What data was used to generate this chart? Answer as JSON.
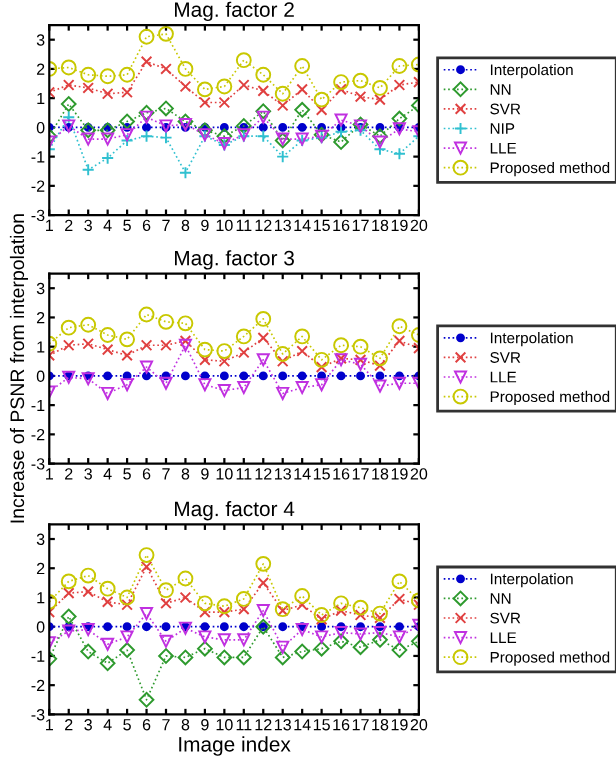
{
  "chart_data": [
    {
      "type": "line",
      "title": "Mag. factor 2",
      "x": [
        1,
        2,
        3,
        4,
        5,
        6,
        7,
        8,
        9,
        10,
        11,
        12,
        13,
        14,
        15,
        16,
        17,
        18,
        19,
        20
      ],
      "xlim": [
        1,
        20
      ],
      "xticks": [
        1,
        2,
        3,
        4,
        5,
        6,
        7,
        8,
        9,
        10,
        11,
        12,
        13,
        14,
        15,
        16,
        17,
        18,
        19,
        20
      ],
      "ylim": [
        -3,
        3.5
      ],
      "yticks": [
        -3,
        -2,
        -1,
        0,
        1,
        2,
        3
      ],
      "line_style": "dotted",
      "legend": "right",
      "grid": false,
      "series": [
        {
          "name": "Interpolation",
          "color": "#0000cc",
          "marker": "circle",
          "values": [
            0,
            0,
            0,
            0,
            0,
            0,
            0,
            0,
            0,
            0,
            0,
            0,
            0,
            0,
            0,
            0,
            0,
            0,
            0,
            0
          ]
        },
        {
          "name": "NN",
          "color": "#2e9a2e",
          "marker": "diamond",
          "values": [
            -0.3,
            0.8,
            -0.1,
            -0.1,
            0.2,
            0.5,
            0.65,
            0.2,
            -0.1,
            -0.3,
            0.05,
            0.55,
            -0.45,
            0.6,
            -0.25,
            -0.5,
            0.1,
            -0.3,
            0.3,
            0.75
          ]
        },
        {
          "name": "SVR",
          "color": "#e04040",
          "marker": "cross",
          "values": [
            1.2,
            1.45,
            1.35,
            1.15,
            1.2,
            2.25,
            2.0,
            1.4,
            0.85,
            0.85,
            1.45,
            1.25,
            0.75,
            1.3,
            0.6,
            1.3,
            1.05,
            0.95,
            1.45,
            1.55
          ]
        },
        {
          "name": "NIP",
          "color": "#30c0d0",
          "marker": "plus",
          "values": [
            -0.75,
            0.35,
            -1.45,
            -1.05,
            -0.45,
            -0.3,
            -0.35,
            -1.55,
            -0.3,
            -0.6,
            -0.3,
            -0.3,
            -1.0,
            -0.45,
            -0.35,
            -0.15,
            -0.1,
            -0.75,
            -0.9,
            -0.3
          ]
        },
        {
          "name": "LLE",
          "color": "#c030e0",
          "marker": "triangle",
          "values": [
            -0.5,
            0.05,
            -0.4,
            -0.4,
            -0.25,
            0.35,
            0.05,
            0.1,
            -0.25,
            -0.55,
            -0.25,
            0.35,
            -0.4,
            -0.4,
            -0.3,
            0.25,
            0.05,
            -0.5,
            -0.05,
            -0.15
          ]
        },
        {
          "name": "Proposed method",
          "color": "#c8c800",
          "marker": "circle_open",
          "values": [
            2.0,
            2.05,
            1.8,
            1.75,
            1.8,
            3.1,
            3.2,
            2.0,
            1.3,
            1.4,
            2.3,
            1.8,
            1.15,
            2.1,
            0.95,
            1.55,
            1.6,
            1.35,
            2.1,
            2.15
          ]
        }
      ]
    },
    {
      "type": "line",
      "title": "Mag. factor 3",
      "ylabel": "Increase of PSNR from interpolation",
      "x": [
        1,
        2,
        3,
        4,
        5,
        6,
        7,
        8,
        9,
        10,
        11,
        12,
        13,
        14,
        15,
        16,
        17,
        18,
        19,
        20
      ],
      "xlim": [
        1,
        20
      ],
      "xticks": [
        1,
        2,
        3,
        4,
        5,
        6,
        7,
        8,
        9,
        10,
        11,
        12,
        13,
        14,
        15,
        16,
        17,
        18,
        19,
        20
      ],
      "ylim": [
        -3,
        3.5
      ],
      "yticks": [
        -3,
        -2,
        -1,
        0,
        1,
        2,
        3
      ],
      "line_style": "dotted",
      "legend": "right",
      "grid": false,
      "series": [
        {
          "name": "Interpolation",
          "color": "#0000cc",
          "marker": "circle",
          "values": [
            0,
            0,
            0,
            0,
            0,
            0,
            0,
            0,
            0,
            0,
            0,
            0,
            0,
            0,
            0,
            0,
            0,
            0,
            0,
            0
          ]
        },
        {
          "name": "SVR",
          "color": "#e04040",
          "marker": "cross",
          "values": [
            0.7,
            1.05,
            1.1,
            0.9,
            0.7,
            1.05,
            1.05,
            1.2,
            0.55,
            0.5,
            0.8,
            1.3,
            0.5,
            0.85,
            0.3,
            0.6,
            0.55,
            0.35,
            1.2,
            0.95
          ]
        },
        {
          "name": "LLE",
          "color": "#c030e0",
          "marker": "triangle",
          "values": [
            -0.55,
            -0.05,
            -0.1,
            -0.6,
            -0.3,
            0.3,
            -0.25,
            1.05,
            -0.3,
            -0.5,
            -0.4,
            0.55,
            -0.6,
            -0.4,
            -0.3,
            0.55,
            0.4,
            -0.35,
            -0.25,
            -0.25
          ]
        },
        {
          "name": "Proposed method",
          "color": "#c8c800",
          "marker": "circle_open",
          "values": [
            1.1,
            1.65,
            1.75,
            1.4,
            1.25,
            2.1,
            1.85,
            1.8,
            0.9,
            0.85,
            1.35,
            1.95,
            0.75,
            1.35,
            0.55,
            1.05,
            1.0,
            0.6,
            1.7,
            1.4
          ]
        }
      ]
    },
    {
      "type": "line",
      "title": "Mag. factor 4",
      "xlabel": "Image index",
      "x": [
        1,
        2,
        3,
        4,
        5,
        6,
        7,
        8,
        9,
        10,
        11,
        12,
        13,
        14,
        15,
        16,
        17,
        18,
        19,
        20
      ],
      "xlim": [
        1,
        20
      ],
      "xticks": [
        1,
        2,
        3,
        4,
        5,
        6,
        7,
        8,
        9,
        10,
        11,
        12,
        13,
        14,
        15,
        16,
        17,
        18,
        19,
        20
      ],
      "ylim": [
        -3,
        3.5
      ],
      "yticks": [
        -3,
        -2,
        -1,
        0,
        1,
        2,
        3
      ],
      "line_style": "dotted",
      "legend": "right",
      "grid": false,
      "series": [
        {
          "name": "Interpolation",
          "color": "#0000cc",
          "marker": "circle",
          "values": [
            0,
            0,
            0,
            0,
            0,
            0,
            0,
            0,
            0,
            0,
            0,
            0,
            0,
            0,
            0,
            0,
            0,
            0,
            0,
            0
          ]
        },
        {
          "name": "NN",
          "color": "#2e9a2e",
          "marker": "diamond",
          "values": [
            -1.1,
            0.35,
            -0.85,
            -1.25,
            -0.8,
            -2.5,
            -1.0,
            -1.05,
            -0.75,
            -1.05,
            -1.05,
            0.0,
            -1.05,
            -0.85,
            -0.75,
            -0.5,
            -0.7,
            -0.45,
            -0.8,
            -0.5
          ]
        },
        {
          "name": "SVR",
          "color": "#e04040",
          "marker": "cross",
          "values": [
            0.5,
            1.15,
            1.2,
            0.85,
            0.75,
            2.05,
            0.8,
            1.0,
            0.5,
            0.5,
            0.6,
            1.5,
            0.55,
            0.75,
            0.25,
            0.55,
            0.4,
            0.3,
            0.95,
            0.75
          ]
        },
        {
          "name": "LLE",
          "color": "#c030e0",
          "marker": "triangle",
          "values": [
            -0.55,
            -0.15,
            -0.1,
            -0.6,
            -0.35,
            0.45,
            -0.5,
            -0.05,
            -0.35,
            -0.45,
            -0.45,
            0.55,
            -0.7,
            -0.1,
            -0.35,
            -0.2,
            -0.25,
            -0.2,
            -0.35,
            0.05
          ]
        },
        {
          "name": "Proposed method",
          "color": "#c8c800",
          "marker": "circle_open",
          "values": [
            0.85,
            1.55,
            1.75,
            1.3,
            1.0,
            2.45,
            1.25,
            1.65,
            0.8,
            0.7,
            0.95,
            2.15,
            0.6,
            1.05,
            0.4,
            0.8,
            0.65,
            0.45,
            1.55,
            0.9
          ]
        }
      ]
    }
  ]
}
